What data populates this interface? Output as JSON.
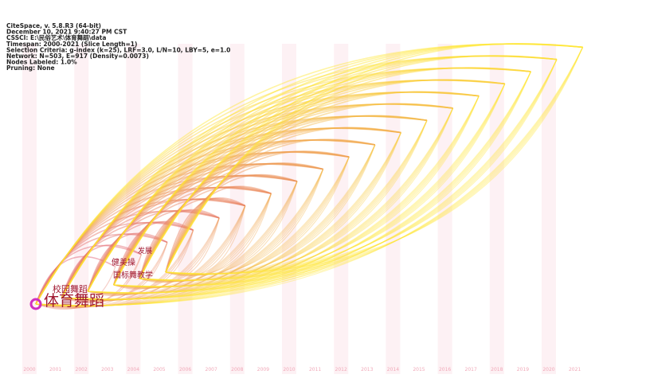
{
  "header": {
    "lines": [
      "CiteSpace, v. 5.8.R3 (64-bit)",
      "December 10, 2021 9:40:27 PM CST",
      "CSSCI: E:\\民俗艺术\\体育舞蹈\\data",
      "Timespan: 2000-2021 (Slice Length=1)",
      "Selection Criteria: g-index (k=25), LRF=3.0, L/N=10, LBY=5, e=1.0",
      "Network: N=503, E=917 (Density=0.0073)",
      "Nodes Labeled: 1.0%",
      "Pruning: None"
    ]
  },
  "timeline": {
    "years": [
      "2000",
      "2001",
      "2002",
      "2003",
      "2004",
      "2005",
      "2006",
      "2007",
      "2008",
      "2009",
      "2010",
      "2011",
      "2012",
      "2013",
      "2014",
      "2015",
      "2016",
      "2017",
      "2018",
      "2019",
      "2020",
      "2021"
    ]
  },
  "nodes": [
    {
      "label": "体育舞蹈"
    },
    {
      "label": "校园舞蹈"
    },
    {
      "label": "国标舞教学"
    },
    {
      "label": "健美操"
    },
    {
      "label": "发展"
    }
  ]
}
